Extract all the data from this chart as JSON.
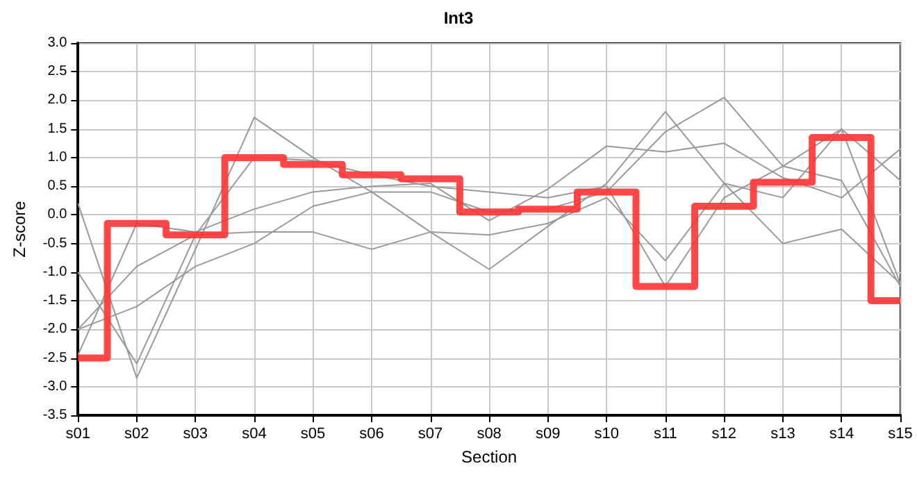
{
  "chart_data": {
    "type": "line",
    "title": "Int3",
    "xlabel": "Section",
    "ylabel": "Z-score",
    "categories": [
      "s01",
      "s02",
      "s03",
      "s04",
      "s05",
      "s06",
      "s07",
      "s08",
      "s09",
      "s10",
      "s11",
      "s12",
      "s13",
      "s14",
      "s15"
    ],
    "series": [
      {
        "color": "#999999",
        "values": [
          0.2,
          -2.85,
          -0.6,
          1.7,
          1.0,
          0.4,
          -0.3,
          -0.95,
          -0.2,
          0.55,
          1.8,
          0.55,
          0.3,
          1.5,
          0.6
        ]
      },
      {
        "color": "#999999",
        "values": [
          -1.0,
          -2.6,
          -0.35,
          1.0,
          0.95,
          0.7,
          0.5,
          0.4,
          0.3,
          0.5,
          -1.25,
          0.3,
          0.85,
          1.5,
          -1.2
        ]
      },
      {
        "color": "#999999",
        "values": [
          -2.45,
          -0.15,
          -0.3,
          0.1,
          0.4,
          0.5,
          0.55,
          -0.1,
          0.45,
          1.2,
          1.1,
          1.25,
          0.65,
          0.3,
          1.15
        ]
      },
      {
        "color": "#999999",
        "values": [
          -2.0,
          -0.9,
          -0.35,
          -0.3,
          -0.3,
          -0.6,
          -0.3,
          -0.35,
          -0.15,
          0.3,
          -0.8,
          0.55,
          -0.5,
          -0.25,
          -1.2
        ]
      },
      {
        "color": "#999999",
        "values": [
          -2.0,
          -1.6,
          -0.9,
          -0.5,
          0.15,
          0.4,
          0.4,
          0.05,
          0.1,
          0.4,
          1.45,
          2.05,
          0.85,
          0.6,
          -1.25
        ]
      },
      {
        "type": "step",
        "color": "#ff3333",
        "values": [
          -2.5,
          -0.15,
          -0.35,
          1.0,
          0.88,
          0.7,
          0.63,
          0.05,
          0.1,
          0.4,
          -1.25,
          0.15,
          0.57,
          1.35,
          -1.5
        ]
      }
    ],
    "ylim": [
      -3.5,
      3.0
    ],
    "yticks": [
      {
        "value": -3.5,
        "label": "-3.5"
      },
      {
        "value": -3,
        "label": "-3.0"
      },
      {
        "value": -2.5,
        "label": "-2.5"
      },
      {
        "value": -2,
        "label": "-2.0"
      },
      {
        "value": -1.5,
        "label": "-1.5"
      },
      {
        "value": -1,
        "label": "-1.0"
      },
      {
        "value": -0.5,
        "label": "-0.5"
      },
      {
        "value": 0,
        "label": "0.0"
      },
      {
        "value": 0.5,
        "label": "0.5"
      },
      {
        "value": 1,
        "label": "1.0"
      },
      {
        "value": 1.5,
        "label": "1.5"
      },
      {
        "value": 2,
        "label": "2.0"
      },
      {
        "value": 2.5,
        "label": "2.5"
      },
      {
        "value": 3,
        "label": "3.0"
      }
    ],
    "grid": true,
    "marker": "none",
    "line_style": "solid"
  }
}
